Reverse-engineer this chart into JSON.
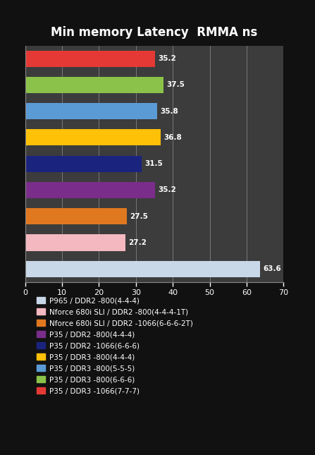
{
  "title": "Min memory Latency  RMMA ns",
  "background_color": "#111111",
  "plot_bg_color": "#3c3c3c",
  "text_color": "#ffffff",
  "bars": [
    {
      "label": "P965 / DDR2 -800(4-4-4)",
      "value": 63.6,
      "color": "#c8d8e8"
    },
    {
      "label": "Nforce 680i SLI / DDR2 -800(4-4-4-1T)",
      "value": 27.2,
      "color": "#f4b8c0"
    },
    {
      "label": "Nforce 680i SLI / DDR2 -1066(6-6-6-2T)",
      "value": 27.5,
      "color": "#e07820"
    },
    {
      "label": "P35 / DDR2 -800(4-4-4)",
      "value": 35.2,
      "color": "#7b2d8b"
    },
    {
      "label": "P35 / DDR2 -1066(6-6-6)",
      "value": 31.5,
      "color": "#1a237e"
    },
    {
      "label": "P35 / DDR3 -800(4-4-4)",
      "value": 36.8,
      "color": "#ffc107"
    },
    {
      "label": "P35 / DDR3 -800(5-5-5)",
      "value": 35.8,
      "color": "#5b9bd5"
    },
    {
      "label": "P35 / DDR3 -800(6-6-6)",
      "value": 37.5,
      "color": "#8bc34a"
    },
    {
      "label": "P35 / DDR3 -1066(7-7-7)",
      "value": 35.2,
      "color": "#e53935"
    }
  ],
  "xlim": [
    0,
    70
  ],
  "xticks": [
    0,
    10,
    20,
    30,
    40,
    50,
    60,
    70
  ],
  "grid_color": "#888888",
  "legend_labels": [
    "P965 / DDR2 -800(4-4-4)",
    "Nforce 680i SLI / DDR2 -800(4-4-4-1T)",
    "Nforce 680i SLI / DDR2 -1066(6-6-6-2T)",
    "P35 / DDR2 -800(4-4-4)",
    "P35 / DDR2 -1066(6-6-6)",
    "P35 / DDR3 -800(4-4-4)",
    "P35 / DDR3 -800(5-5-5)",
    "P35 / DDR3 -800(6-6-6)",
    "P35 / DDR3 -1066(7-7-7)"
  ],
  "legend_colors": [
    "#c8d8e8",
    "#f4b8c0",
    "#e07820",
    "#7b2d8b",
    "#1a237e",
    "#ffc107",
    "#5b9bd5",
    "#8bc34a",
    "#e53935"
  ]
}
